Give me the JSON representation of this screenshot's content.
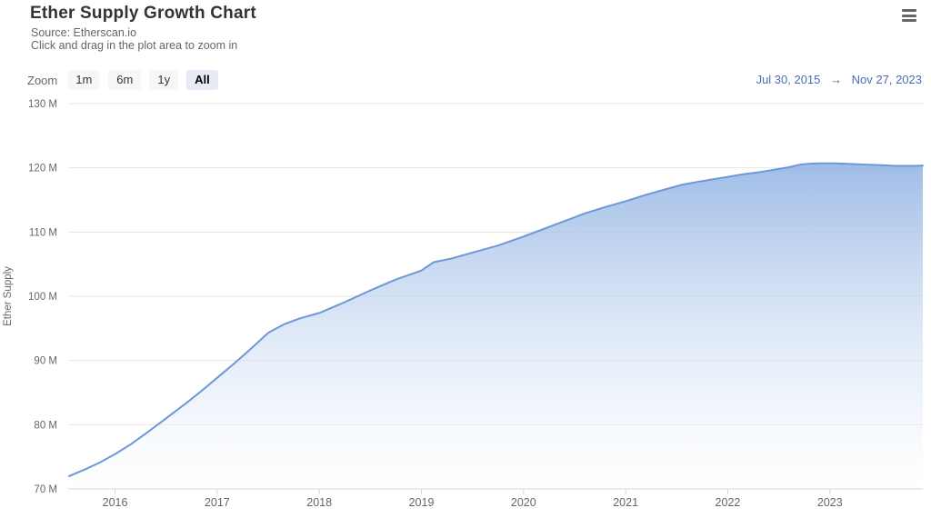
{
  "header": {
    "title": "Ether Supply Growth Chart",
    "subtitle1": "Source: Etherscan.io",
    "subtitle2": "Click and drag in the plot area to zoom in"
  },
  "toolbar": {
    "zoom_label": "Zoom",
    "zoom_buttons": [
      {
        "label": "1m",
        "selected": false
      },
      {
        "label": "6m",
        "selected": false
      },
      {
        "label": "1y",
        "selected": false
      },
      {
        "label": "All",
        "selected": true
      }
    ],
    "date_range": {
      "from": "Jul 30, 2015",
      "arrow": "→",
      "to": "Nov 27, 2023"
    }
  },
  "colors": {
    "line": "#6d98d8",
    "area_top": "#7aa3dd",
    "area_bottom": "#ffffff",
    "grid": "#e6e6e6",
    "axis": "#ccd6eb",
    "tick_label": "#666666",
    "date_link": "#4a6db4"
  },
  "chart_data": {
    "type": "area",
    "title": "Ether Supply Growth Chart",
    "xlabel": "",
    "ylabel": "Ether Supply",
    "legend": "off",
    "grid": "horizontal",
    "x_range": [
      2015.55,
      2023.91
    ],
    "y_range": [
      70,
      130
    ],
    "x_ticks": [
      {
        "value": 2016,
        "label": "2016"
      },
      {
        "value": 2017,
        "label": "2017"
      },
      {
        "value": 2018,
        "label": "2018"
      },
      {
        "value": 2019,
        "label": "2019"
      },
      {
        "value": 2020,
        "label": "2020"
      },
      {
        "value": 2021,
        "label": "2021"
      },
      {
        "value": 2022,
        "label": "2022"
      },
      {
        "value": 2023,
        "label": "2023"
      }
    ],
    "y_ticks": [
      {
        "value": 70,
        "label": "70 M"
      },
      {
        "value": 80,
        "label": "80 M"
      },
      {
        "value": 90,
        "label": "90 M"
      },
      {
        "value": 100,
        "label": "100 M"
      },
      {
        "value": 110,
        "label": "110 M"
      },
      {
        "value": 120,
        "label": "120 M"
      },
      {
        "value": 130,
        "label": "130 M"
      }
    ],
    "series": [
      {
        "name": "Ether Supply (millions)",
        "points": [
          [
            2015.55,
            72.0
          ],
          [
            2015.7,
            73.0
          ],
          [
            2015.85,
            74.1
          ],
          [
            2016.0,
            75.4
          ],
          [
            2016.15,
            76.9
          ],
          [
            2016.3,
            78.6
          ],
          [
            2016.5,
            81.0
          ],
          [
            2016.7,
            83.4
          ],
          [
            2016.85,
            85.3
          ],
          [
            2017.0,
            87.3
          ],
          [
            2017.15,
            89.3
          ],
          [
            2017.3,
            91.4
          ],
          [
            2017.5,
            94.3
          ],
          [
            2017.65,
            95.6
          ],
          [
            2017.8,
            96.5
          ],
          [
            2018.0,
            97.4
          ],
          [
            2018.25,
            99.1
          ],
          [
            2018.5,
            100.9
          ],
          [
            2018.75,
            102.6
          ],
          [
            2019.0,
            104.0
          ],
          [
            2019.12,
            105.3
          ],
          [
            2019.3,
            105.9
          ],
          [
            2019.5,
            106.8
          ],
          [
            2019.75,
            107.9
          ],
          [
            2020.0,
            109.3
          ],
          [
            2020.2,
            110.5
          ],
          [
            2020.4,
            111.7
          ],
          [
            2020.6,
            112.9
          ],
          [
            2020.8,
            113.9
          ],
          [
            2021.0,
            114.8
          ],
          [
            2021.2,
            115.8
          ],
          [
            2021.4,
            116.7
          ],
          [
            2021.55,
            117.35
          ],
          [
            2021.7,
            117.8
          ],
          [
            2021.85,
            118.2
          ],
          [
            2022.0,
            118.6
          ],
          [
            2022.15,
            119.0
          ],
          [
            2022.3,
            119.3
          ],
          [
            2022.45,
            119.7
          ],
          [
            2022.6,
            120.1
          ],
          [
            2022.71,
            120.5
          ],
          [
            2022.8,
            120.65
          ],
          [
            2022.9,
            120.7
          ],
          [
            2023.05,
            120.7
          ],
          [
            2023.2,
            120.6
          ],
          [
            2023.35,
            120.5
          ],
          [
            2023.5,
            120.4
          ],
          [
            2023.65,
            120.3
          ],
          [
            2023.8,
            120.3
          ],
          [
            2023.91,
            120.35
          ]
        ]
      }
    ]
  }
}
